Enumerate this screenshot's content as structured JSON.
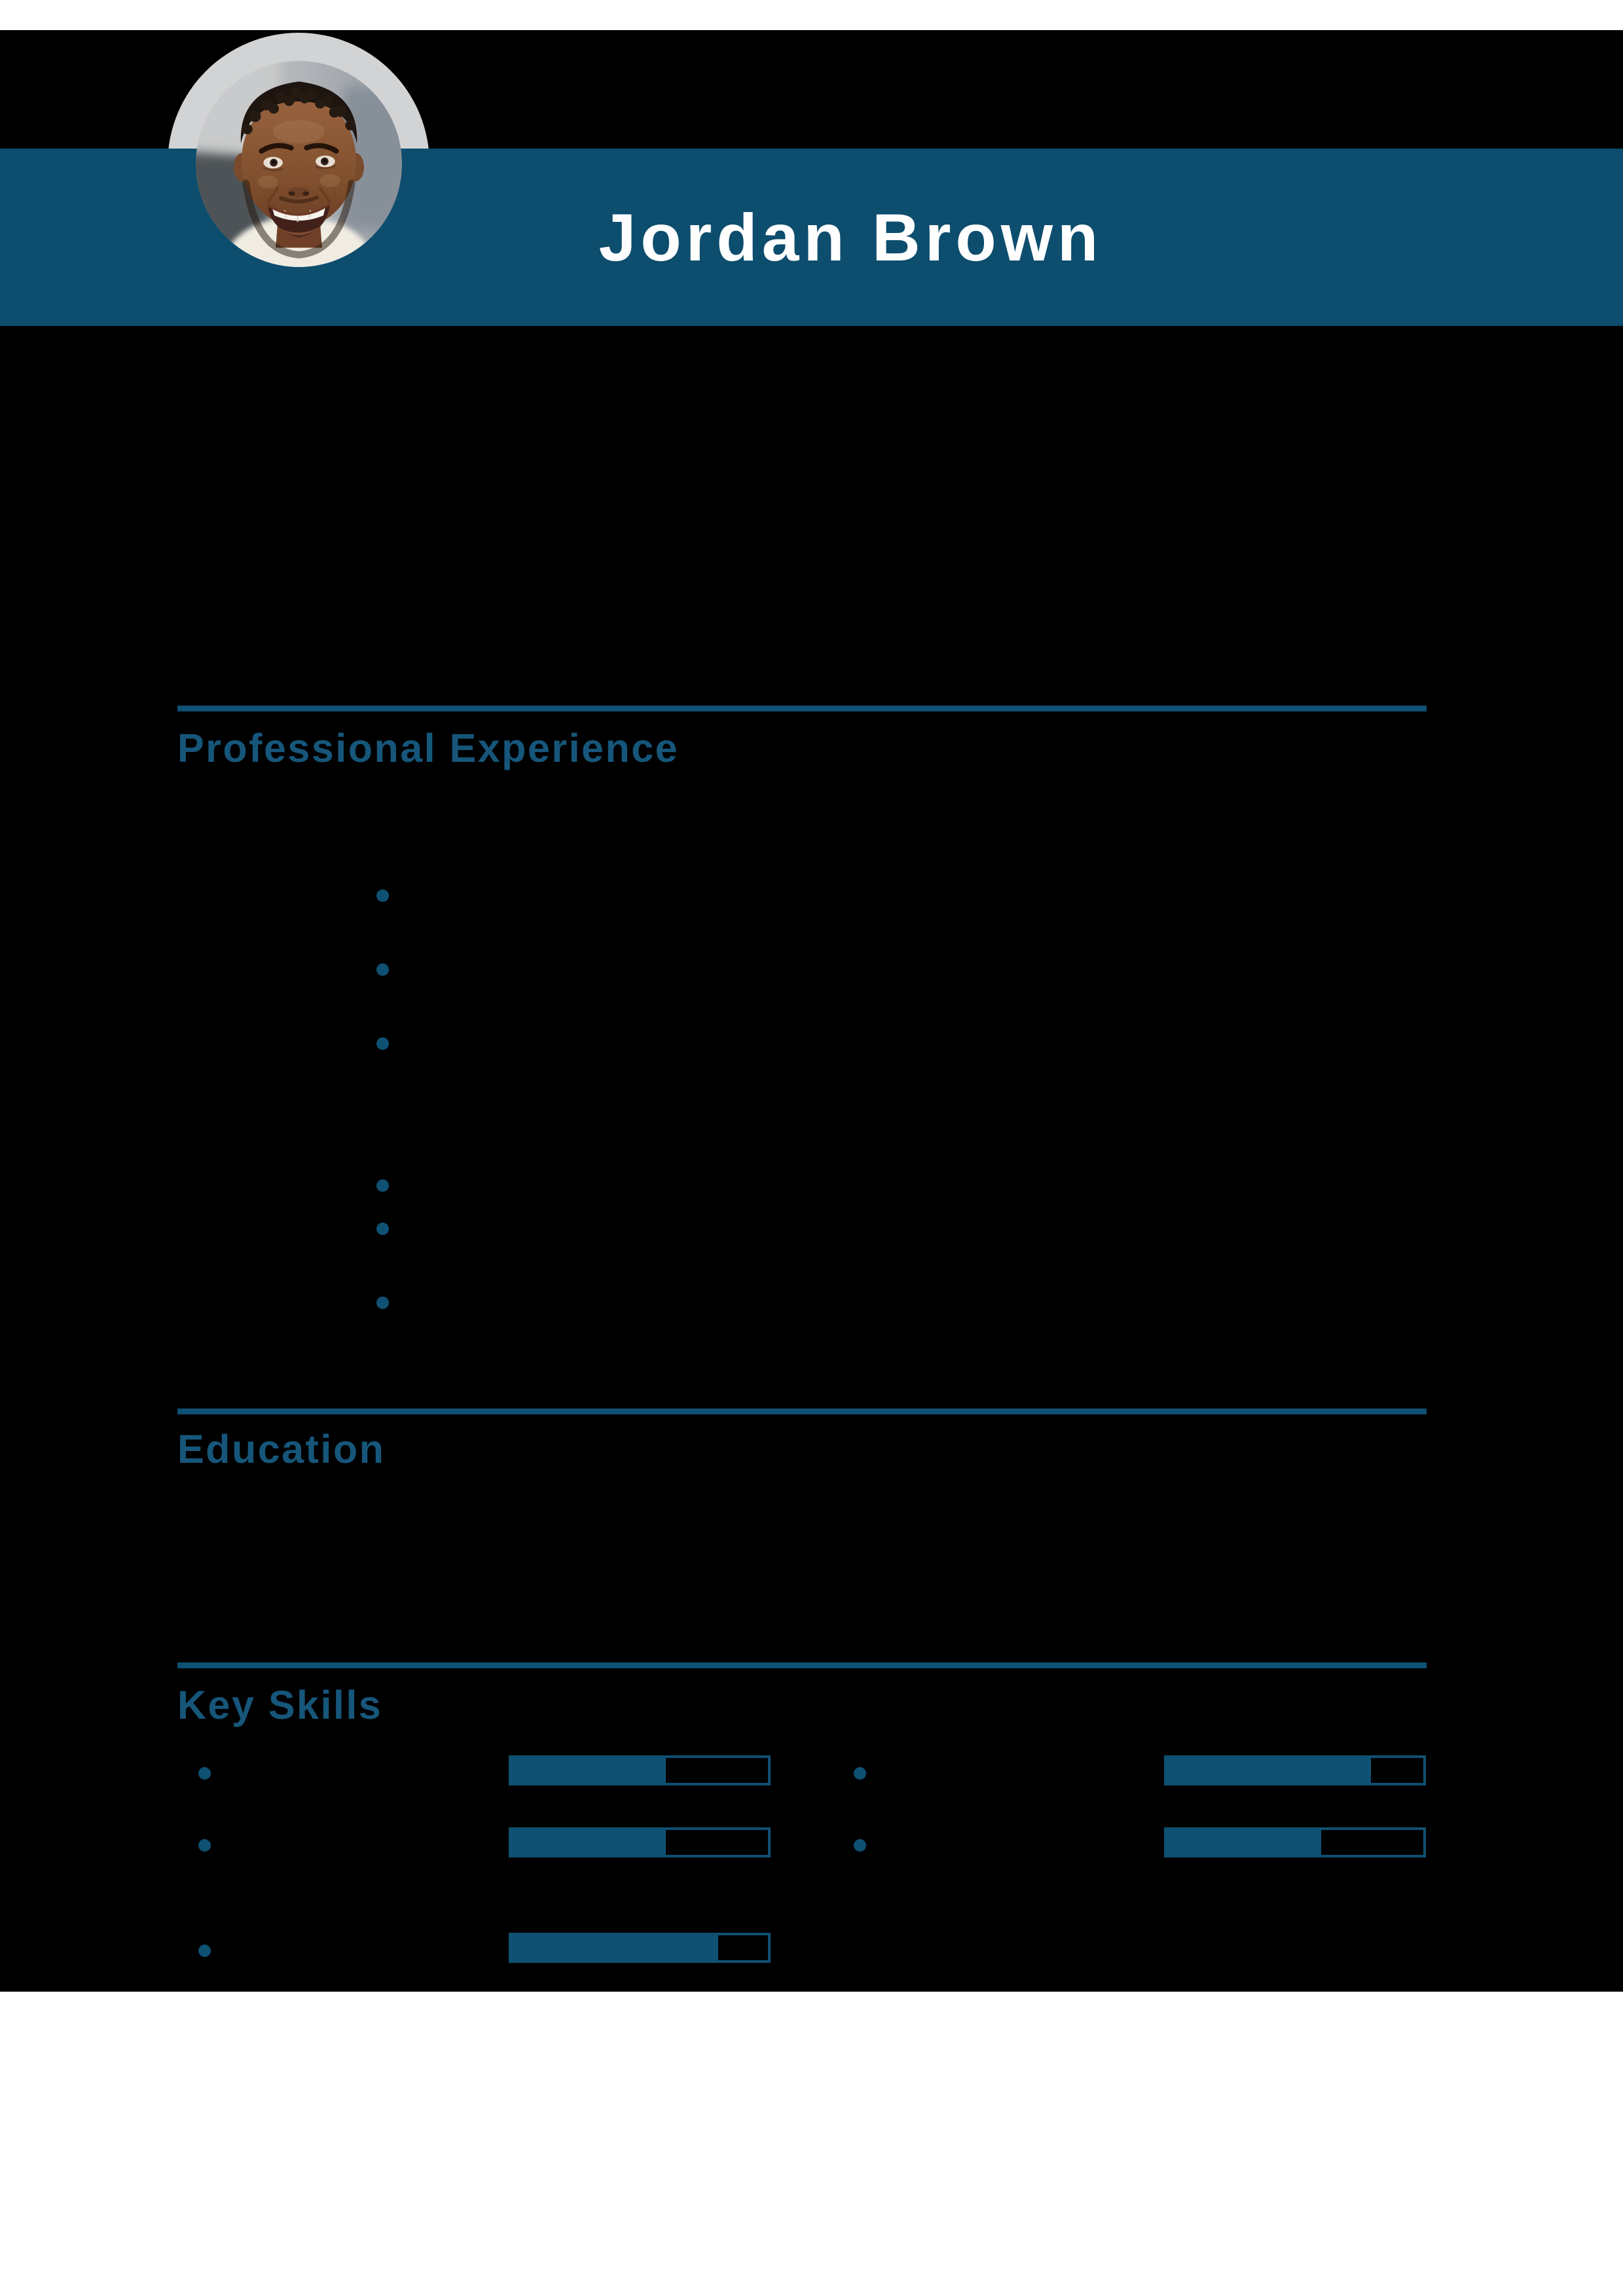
{
  "header": {
    "name": "Jordan Brown"
  },
  "sections": {
    "experience": {
      "heading": "Professional Experience",
      "items": [
        "",
        "",
        "",
        "",
        "",
        ""
      ]
    },
    "education": {
      "heading": "Education"
    },
    "skills": {
      "heading": "Key Skills",
      "items": [
        {
          "side": "left",
          "row": 0,
          "percent": 60
        },
        {
          "side": "right",
          "row": 0,
          "percent": 79
        },
        {
          "side": "left",
          "row": 1,
          "percent": 60
        },
        {
          "side": "right",
          "row": 1,
          "percent": 60
        },
        {
          "side": "left",
          "row": 2,
          "percent": 80
        }
      ]
    }
  },
  "colors": {
    "band_blue": "#0d4d6e",
    "accent_blue": "#0f5173",
    "heading_blue": "#16567a",
    "ring_gray": "#d2d3d4",
    "page_black": "#000000",
    "page_white": "#ffffff"
  }
}
